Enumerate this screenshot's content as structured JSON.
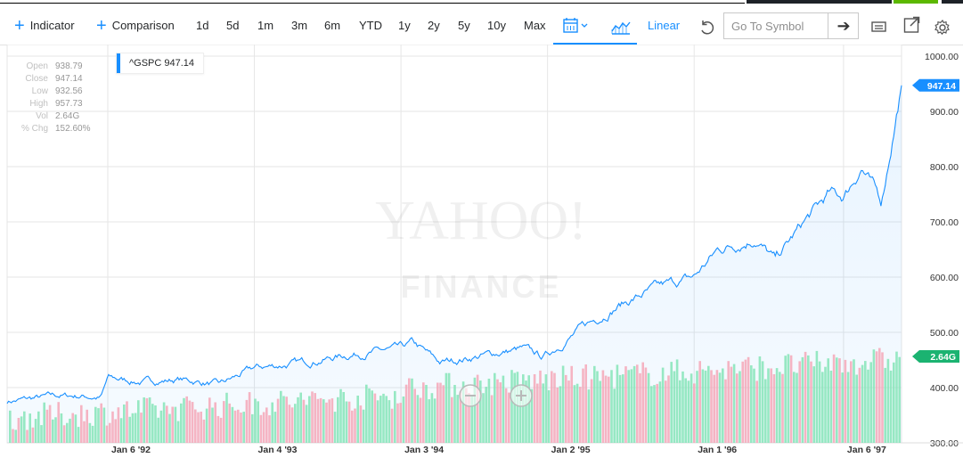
{
  "toolbar": {
    "indicator_label": "Indicator",
    "comparison_label": "Comparison",
    "ranges": [
      "1d",
      "5d",
      "1m",
      "3m",
      "6m",
      "YTD",
      "1y",
      "2y",
      "5y",
      "10y",
      "Max"
    ],
    "scale_label": "Linear",
    "search_placeholder": "Go To Symbol"
  },
  "ohlc": {
    "open_label": "Open",
    "open": "938.79",
    "close_label": "Close",
    "close": "947.14",
    "low_label": "Low",
    "low": "932.56",
    "high_label": "High",
    "high": "957.73",
    "vol_label": "Vol",
    "vol": "2.64G",
    "chg_label": "% Chg",
    "chg": "152.60%"
  },
  "legend": {
    "symbol_text": "^GSPC 947.14"
  },
  "watermark": {
    "line1": "YAHOO!",
    "line2": "FINANCE"
  },
  "colors": {
    "accent": "#188fff",
    "volume_up": "#7ee3b4",
    "volume_down": "#f5a3b4",
    "volume_badge": "#1bb371"
  },
  "chart_data": {
    "type": "area",
    "series": [
      {
        "name": "^GSPC"
      }
    ],
    "y_axis": {
      "min": 300,
      "max": 1000,
      "ticks": [
        300,
        400,
        500,
        600,
        700,
        800,
        900,
        1000
      ],
      "tick_labels": [
        "300.00",
        "400.00",
        "500.00",
        "600.00",
        "700.00",
        "800.00",
        "900.00",
        "1000.00"
      ],
      "position": "right"
    },
    "x_axis": {
      "start": "1991-05-01",
      "end": "1997-05-30",
      "ticks": [
        "1992-01-06",
        "1993-01-04",
        "1994-01-03",
        "1995-01-02",
        "1996-01-01",
        "1997-01-06"
      ],
      "tick_labels": [
        "Jan 6 '92",
        "Jan 4 '93",
        "Jan 3 '94",
        "Jan 2 '95",
        "Jan 1 '96",
        "Jan 6 '97"
      ]
    },
    "price_keypoints": [
      [
        "1991-05-01",
        375
      ],
      [
        "1991-07-01",
        380
      ],
      [
        "1991-09-01",
        385
      ],
      [
        "1991-11-01",
        385
      ],
      [
        "1991-12-20",
        382
      ],
      [
        "1992-01-06",
        417
      ],
      [
        "1992-04-01",
        410
      ],
      [
        "1992-07-01",
        415
      ],
      [
        "1992-10-10",
        405
      ],
      [
        "1993-01-04",
        435
      ],
      [
        "1993-05-01",
        445
      ],
      [
        "1993-09-01",
        460
      ],
      [
        "1994-01-03",
        470
      ],
      [
        "1994-02-01",
        480
      ],
      [
        "1994-04-10",
        445
      ],
      [
        "1994-07-01",
        455
      ],
      [
        "1994-11-01",
        470
      ],
      [
        "1994-12-20",
        455
      ],
      [
        "1995-01-02",
        460
      ],
      [
        "1995-04-01",
        510
      ],
      [
        "1995-07-01",
        550
      ],
      [
        "1995-10-01",
        580
      ],
      [
        "1996-01-01",
        600
      ],
      [
        "1996-03-01",
        650
      ],
      [
        "1996-06-01",
        670
      ],
      [
        "1996-07-20",
        630
      ],
      [
        "1996-10-01",
        700
      ],
      [
        "1996-12-01",
        750
      ],
      [
        "1997-01-06",
        745
      ],
      [
        "1997-02-20",
        800
      ],
      [
        "1997-04-10",
        735
      ],
      [
        "1997-05-30",
        947.14
      ]
    ],
    "last_price_label": "947.14",
    "last_volume_label": "2.64G",
    "grid": true
  }
}
